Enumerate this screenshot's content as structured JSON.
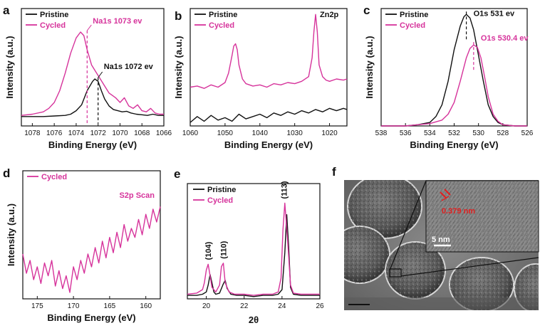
{
  "colors": {
    "pristine": "#111111",
    "cycled": "#d6339b",
    "annotation_red": "#e02020"
  },
  "chart_data": [
    {
      "id": "a",
      "type": "line",
      "panel_label": "a",
      "xlabel": "Binding Energy (eV)",
      "ylabel": "Intensity (a.u.)",
      "xlim": [
        1079,
        1066
      ],
      "ylim": [
        0,
        100
      ],
      "xticks": [
        1078,
        1076,
        1074,
        1072,
        1070,
        1068,
        1066
      ],
      "legend": {
        "position": "top-left",
        "entries": [
          "Pristine",
          "Cycled"
        ]
      },
      "series": [
        {
          "name": "Pristine",
          "color_key": "pristine",
          "x": [
            1079,
            1077,
            1076,
            1075,
            1074.5,
            1074,
            1073.5,
            1073,
            1072.5,
            1072.3,
            1072,
            1071.7,
            1071.4,
            1071,
            1070.6,
            1070.2,
            1069.8,
            1069.4,
            1069,
            1068.5,
            1068,
            1067.5,
            1067,
            1066.5,
            1066
          ],
          "y": [
            8,
            8,
            8.5,
            9,
            10,
            13,
            18,
            30,
            38,
            40,
            38,
            30,
            23,
            17,
            14,
            13,
            12,
            12.5,
            11,
            10,
            9.5,
            9,
            10,
            9,
            9
          ]
        },
        {
          "name": "Cycled",
          "color_key": "cycled",
          "x": [
            1079,
            1078,
            1077,
            1076.5,
            1076,
            1075.5,
            1075,
            1074.5,
            1074,
            1073.6,
            1073.3,
            1073,
            1072.6,
            1072.2,
            1071.8,
            1071.4,
            1071,
            1070.7,
            1070.4,
            1070,
            1069.6,
            1069.2,
            1068.8,
            1068.4,
            1068,
            1067.6,
            1067.2,
            1066.8,
            1066.4,
            1066
          ],
          "y": [
            9,
            10,
            12,
            15,
            20,
            30,
            45,
            62,
            75,
            80,
            77,
            65,
            52,
            46,
            40,
            34,
            28,
            26,
            24,
            20,
            24,
            17,
            15,
            18,
            13,
            12,
            15,
            11,
            10,
            10
          ]
        }
      ],
      "annotations": [
        {
          "text": "Na1s 1073 ev",
          "x": 1073,
          "series": "Cycled"
        },
        {
          "text": "Na1s 1072 ev",
          "x": 1072,
          "series": "Pristine"
        }
      ]
    },
    {
      "id": "b",
      "type": "line",
      "panel_label": "b",
      "xlabel": "Binding Energy (eV)",
      "ylabel": "Intensity (a.u.)",
      "xlim": [
        1060,
        1015
      ],
      "ylim": [
        0,
        100
      ],
      "xticks": [
        1060,
        1050,
        1040,
        1030,
        1020
      ],
      "legend": {
        "position": "top-left",
        "entries": [
          "Pristine",
          "Cycled"
        ]
      },
      "series": [
        {
          "name": "Pristine",
          "color_key": "pristine",
          "x": [
            1060,
            1058,
            1056,
            1054,
            1052,
            1050,
            1048,
            1046,
            1044,
            1042,
            1040,
            1038,
            1036,
            1034,
            1032,
            1030,
            1028,
            1026,
            1024,
            1022,
            1020,
            1018,
            1016,
            1015
          ],
          "y": [
            3,
            8,
            4,
            9,
            5,
            7,
            4,
            10,
            6,
            8,
            10,
            7,
            11,
            9,
            12,
            10,
            13,
            11,
            14,
            12,
            15,
            13,
            15,
            14
          ]
        },
        {
          "name": "Cycled",
          "color_key": "cycled",
          "x": [
            1060,
            1058,
            1056,
            1054,
            1052,
            1050,
            1049,
            1048,
            1047.5,
            1047,
            1046.5,
            1046,
            1045,
            1044,
            1042,
            1040,
            1038,
            1036,
            1034,
            1032,
            1030,
            1028,
            1026,
            1025,
            1024.5,
            1024,
            1023.5,
            1023,
            1022,
            1021,
            1020,
            1018,
            1016,
            1015
          ],
          "y": [
            33,
            34,
            32,
            35,
            33,
            37,
            45,
            60,
            68,
            70,
            65,
            52,
            40,
            36,
            34,
            35,
            33,
            36,
            35,
            37,
            36,
            38,
            42,
            58,
            80,
            95,
            80,
            52,
            42,
            39,
            38,
            40,
            39,
            40
          ]
        }
      ],
      "annotations": [
        {
          "text": "Zn2p",
          "x": 1024,
          "series": "Cycled"
        }
      ]
    },
    {
      "id": "c",
      "type": "line",
      "panel_label": "c",
      "xlabel": "Binding Energy (eV)",
      "ylabel": "Intensity (a.u.)",
      "xlim": [
        538,
        526
      ],
      "ylim": [
        0,
        100
      ],
      "xticks": [
        538,
        536,
        534,
        532,
        530,
        528,
        526
      ],
      "legend": {
        "position": "top-left",
        "entries": [
          "Pristine",
          "Cycled"
        ]
      },
      "series": [
        {
          "name": "Pristine",
          "color_key": "pristine",
          "x": [
            538,
            536,
            535,
            534,
            533.5,
            533,
            532.5,
            532,
            531.5,
            531.2,
            531,
            530.7,
            530.4,
            530,
            529.6,
            529.2,
            528.8,
            528.4,
            528,
            527,
            526
          ],
          "y": [
            0,
            0,
            1,
            3,
            8,
            18,
            38,
            65,
            85,
            93,
            95,
            92,
            82,
            60,
            38,
            18,
            8,
            3,
            1,
            0,
            0
          ]
        },
        {
          "name": "Cycled",
          "color_key": "cycled",
          "x": [
            538,
            536,
            535,
            534,
            533,
            532.5,
            532,
            531.5,
            531,
            530.7,
            530.4,
            530.1,
            529.8,
            529.5,
            529.2,
            528.8,
            528.4,
            528,
            527,
            526
          ],
          "y": [
            0,
            0,
            1,
            2,
            5,
            10,
            20,
            38,
            58,
            66,
            69,
            67,
            58,
            42,
            25,
            10,
            4,
            1,
            0,
            0
          ]
        }
      ],
      "annotations": [
        {
          "text": "O1s 531 ev",
          "x": 531,
          "series": "Pristine"
        },
        {
          "text": "O1s 530.4 ev",
          "x": 530.4,
          "series": "Cycled"
        }
      ]
    },
    {
      "id": "d",
      "type": "line",
      "panel_label": "d",
      "xlabel": "Binding Energy (eV)",
      "ylabel": "Intensity (a.u.)",
      "xlim": [
        177,
        158
      ],
      "ylim": [
        0,
        100
      ],
      "xticks": [
        175,
        170,
        165,
        160
      ],
      "legend": {
        "position": "top-left",
        "entries": [
          "Cycled"
        ]
      },
      "title_text": "S2p Scan",
      "series": [
        {
          "name": "Cycled",
          "color_key": "cycled",
          "x": [
            177,
            176.5,
            176,
            175.5,
            175,
            174.5,
            174,
            173.5,
            173,
            172.5,
            172,
            171.5,
            171,
            170.5,
            170,
            169.5,
            169,
            168.5,
            168,
            167.5,
            167,
            166.5,
            166,
            165.5,
            165,
            164.5,
            164,
            163.5,
            163,
            162.5,
            162,
            161.5,
            161,
            160.5,
            160,
            159.5,
            159,
            158.5,
            158
          ],
          "y": [
            35,
            20,
            30,
            15,
            25,
            12,
            28,
            18,
            30,
            10,
            22,
            8,
            18,
            5,
            25,
            15,
            30,
            20,
            35,
            25,
            40,
            28,
            45,
            32,
            48,
            36,
            52,
            40,
            58,
            45,
            55,
            48,
            62,
            50,
            66,
            55,
            70,
            60,
            72
          ]
        }
      ]
    },
    {
      "id": "e",
      "type": "line",
      "panel_label": "e",
      "xlabel": "2θ",
      "ylabel": "",
      "xlim": [
        19,
        26
      ],
      "ylim": [
        0,
        100
      ],
      "xticks": [
        20,
        22,
        24,
        26
      ],
      "legend": {
        "position": "top-left",
        "entries": [
          "Pristine",
          "Cycled"
        ]
      },
      "series": [
        {
          "name": "Pristine",
          "color_key": "pristine",
          "x": [
            19,
            19.5,
            19.8,
            20.0,
            20.1,
            20.2,
            20.3,
            20.4,
            20.5,
            20.7,
            20.9,
            21.0,
            21.1,
            21.3,
            21.6,
            22,
            22.5,
            23,
            23.5,
            23.8,
            24.0,
            24.15,
            24.25,
            24.35,
            24.45,
            24.6,
            25,
            25.5,
            26
          ],
          "y": [
            3,
            3,
            4,
            6,
            12,
            21,
            14,
            6,
            4,
            5,
            13,
            16,
            9,
            4,
            3,
            3,
            2,
            3,
            3,
            4,
            8,
            40,
            73,
            45,
            10,
            4,
            3,
            3,
            3
          ]
        },
        {
          "name": "Cycled",
          "color_key": "cycled",
          "x": [
            19,
            19.5,
            19.8,
            19.9,
            20.0,
            20.1,
            20.2,
            20.3,
            20.5,
            20.7,
            20.8,
            20.9,
            21.0,
            21.2,
            21.5,
            22,
            22.5,
            23,
            23.5,
            23.8,
            23.95,
            24.05,
            24.15,
            24.3,
            24.45,
            24.6,
            25,
            25.5,
            26
          ],
          "y": [
            4,
            5,
            8,
            14,
            25,
            30,
            20,
            10,
            6,
            12,
            28,
            31,
            14,
            6,
            4,
            4,
            3,
            4,
            4,
            6,
            18,
            60,
            83,
            50,
            12,
            5,
            4,
            4,
            4
          ]
        }
      ],
      "annotations": [
        {
          "text": "(104)",
          "x": 20.1
        },
        {
          "text": "(110)",
          "x": 20.9
        },
        {
          "text": "(113)",
          "x": 24.1
        }
      ]
    }
  ],
  "panel_f": {
    "panel_label": "f",
    "image": "TEM micrograph of particles with HRTEM inset",
    "inset_scale_label": "5 nm",
    "lattice_spacing_label": "0.379 nm"
  }
}
